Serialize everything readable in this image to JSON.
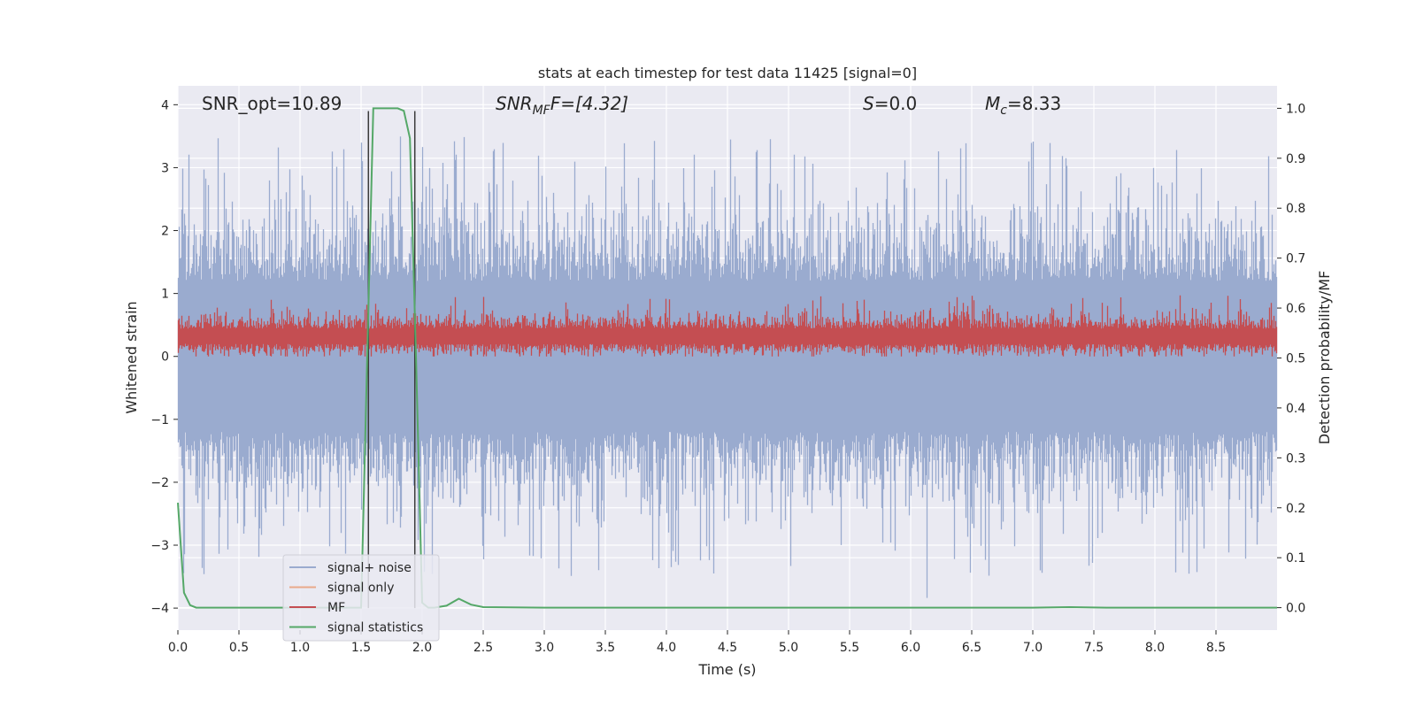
{
  "chart_data": {
    "type": "line",
    "title": "stats at each timestep for test data 11425 [signal=0]",
    "xlabel": "Time (s)",
    "ylabel": "Whitened strain",
    "ylabel_right": "Detection probability/MF",
    "xlim": [
      0.0,
      9.0
    ],
    "ylim": [
      -4.35,
      4.3
    ],
    "ylim_right": [
      -0.045,
      1.045
    ],
    "xticks": [
      "0.0",
      "0.5",
      "1.0",
      "1.5",
      "2.0",
      "2.5",
      "3.0",
      "3.5",
      "4.0",
      "4.5",
      "5.0",
      "5.5",
      "6.0",
      "6.5",
      "7.0",
      "7.5",
      "8.0",
      "8.5"
    ],
    "yticks": [
      "4",
      "3",
      "2",
      "1",
      "0",
      "−1",
      "−2",
      "−3",
      "−4"
    ],
    "yticks_right": [
      "1.0",
      "0.9",
      "0.8",
      "0.7",
      "0.6",
      "0.5",
      "0.4",
      "0.3",
      "0.2",
      "0.1",
      "0.0"
    ],
    "grid": true,
    "legend_position": "lower-left",
    "annotations": {
      "snr_opt": "SNR_opt=10.89",
      "snr_mf_main": "SNR",
      "snr_mf_sub": "MF",
      "snr_mf_rest": "F=[4.32]",
      "s_main": "S",
      "s_rest": "=0.0",
      "mc_main": "M",
      "mc_sub": "c",
      "mc_rest": "=8.33"
    },
    "markers_x": [
      1.56,
      1.94
    ],
    "series": [
      {
        "name": "signal+ noise",
        "color": "#9aabcf",
        "kind": "noise",
        "amplitude_range": [
          -4.0,
          3.9
        ]
      },
      {
        "name": "signal only",
        "color": "#e9a98a",
        "kind": "empty"
      },
      {
        "name": "MF",
        "color": "#c44e52",
        "kind": "band",
        "center": 0.32,
        "range": [
          0.0,
          1.0
        ]
      },
      {
        "name": "signal statistics",
        "color": "#55a868",
        "kind": "line",
        "x": [
          0.0,
          0.05,
          0.1,
          0.15,
          0.2,
          0.3,
          0.5,
          1.0,
          1.5,
          1.55,
          1.6,
          1.65,
          1.7,
          1.8,
          1.85,
          1.9,
          1.95,
          2.0,
          2.05,
          2.1,
          2.2,
          2.3,
          2.4,
          2.5,
          3.0,
          4.0,
          5.0,
          6.0,
          7.0,
          7.3,
          7.6,
          8.0,
          9.0
        ],
        "y": [
          0.21,
          0.03,
          0.005,
          0.0,
          0.0,
          0.0,
          0.0,
          0.0,
          0.0,
          0.5,
          1.0,
          1.0,
          1.0,
          1.0,
          0.995,
          0.94,
          0.5,
          0.01,
          0.0,
          0.0,
          0.004,
          0.018,
          0.006,
          0.001,
          0.0,
          0.0,
          0.0,
          0.0,
          0.0,
          0.001,
          0.0,
          0.0,
          0.0
        ]
      }
    ]
  },
  "colors": {
    "plot_bg": "#eaeaf2",
    "grid": "#ffffff",
    "text": "#262626",
    "marker_line": "#3b3b3b"
  }
}
